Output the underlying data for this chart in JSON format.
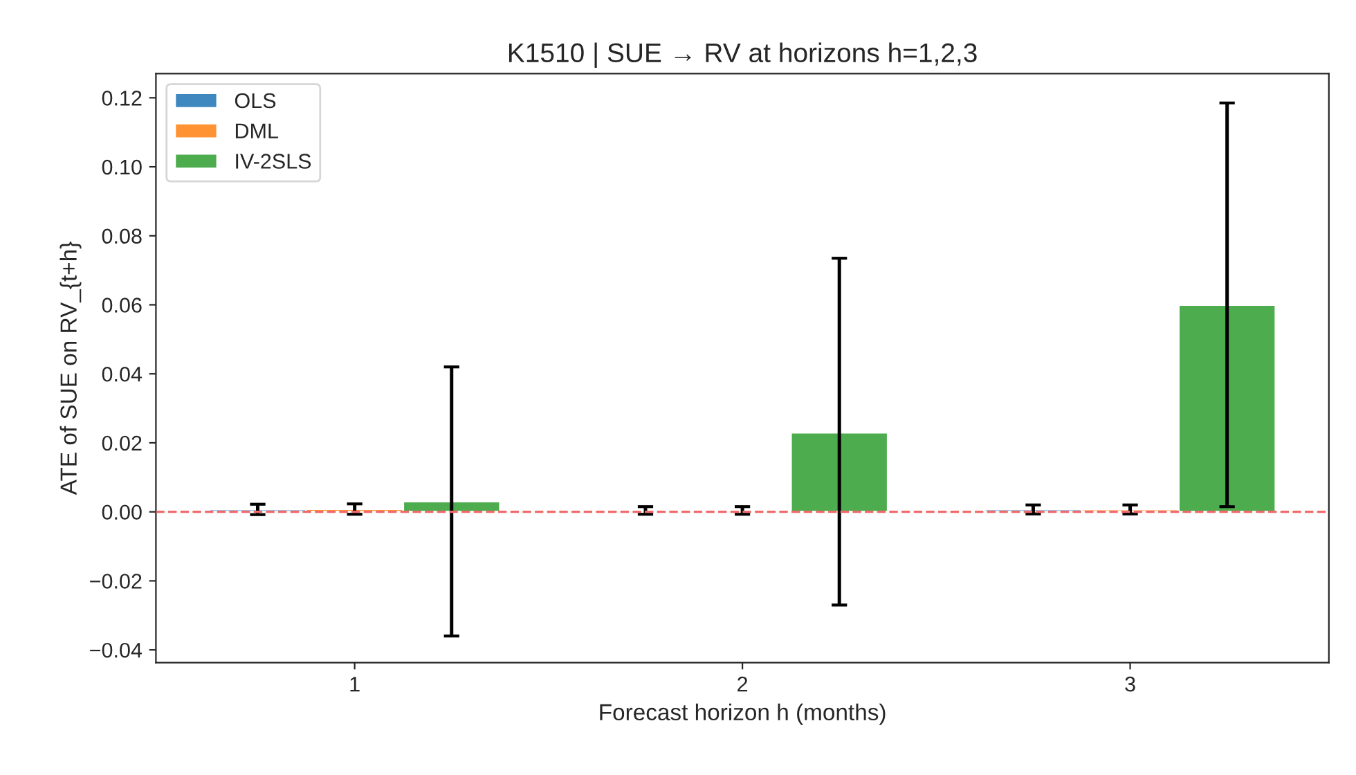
{
  "chart_data": {
    "type": "bar",
    "title": "K1510 | SUE → RV at horizons h=1,2,3",
    "xlabel": "Forecast horizon h (months)",
    "ylabel": "ATE of SUE on RV_{t+h}",
    "categories": [
      "1",
      "2",
      "3"
    ],
    "series": [
      {
        "name": "OLS",
        "color": "#3f88bf",
        "values": [
          0.0007,
          0.0004,
          0.0007
        ],
        "errors": [
          0.0015,
          0.0011,
          0.0013
        ]
      },
      {
        "name": "DML",
        "color": "#ff9334",
        "values": [
          0.0008,
          0.0004,
          0.0007
        ],
        "errors": [
          0.0015,
          0.0011,
          0.0013
        ]
      },
      {
        "name": "IV-2SLS",
        "color": "#4dac4d",
        "values": [
          0.003,
          0.023,
          0.06
        ],
        "errors": [
          [
            -0.036,
            0.042
          ],
          [
            -0.027,
            0.0735
          ],
          [
            0.0015,
            0.1185
          ]
        ]
      }
    ],
    "ylim": [
      -0.0437,
      0.127
    ],
    "yticks": [
      {
        "value": -0.04,
        "label": "−0.04"
      },
      {
        "value": -0.02,
        "label": "−0.02"
      },
      {
        "value": 0,
        "label": "0.00"
      },
      {
        "value": 0.02,
        "label": "0.02"
      },
      {
        "value": 0.04,
        "label": "0.04"
      },
      {
        "value": 0.06,
        "label": "0.06"
      },
      {
        "value": 0.08,
        "label": "0.08"
      },
      {
        "value": 0.1,
        "label": "0.10"
      },
      {
        "value": 0.12,
        "label": "0.12"
      }
    ],
    "ref_lines": [
      {
        "axis": "y",
        "value": 0,
        "color": "#f06a6a",
        "line_style": "dashed"
      }
    ],
    "legend": "top left",
    "grid": false
  }
}
